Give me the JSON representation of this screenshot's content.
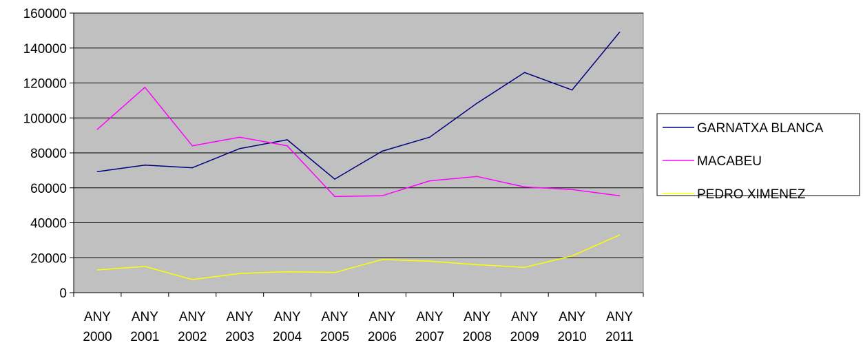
{
  "chart_data": {
    "type": "line",
    "categories": [
      [
        "ANY",
        "2000"
      ],
      [
        "ANY",
        "2001"
      ],
      [
        "ANY",
        "2002"
      ],
      [
        "ANY",
        "2003"
      ],
      [
        "ANY",
        "2004"
      ],
      [
        "ANY",
        "2005"
      ],
      [
        "ANY",
        "2006"
      ],
      [
        "ANY",
        "2007"
      ],
      [
        "ANY",
        "2008"
      ],
      [
        "ANY",
        "2009"
      ],
      [
        "ANY",
        "2010"
      ],
      [
        "ANY",
        "2011"
      ]
    ],
    "series": [
      {
        "name": "GARNATXA BLANCA",
        "color": "#000080",
        "values": [
          69300,
          73000,
          71500,
          82500,
          87500,
          65000,
          81000,
          89000,
          108500,
          126000,
          116000,
          149000
        ]
      },
      {
        "name": "MACABEU",
        "color": "#ff00ff",
        "values": [
          93500,
          117500,
          84000,
          89000,
          84000,
          55000,
          55500,
          64000,
          66500,
          60500,
          59000,
          55500
        ]
      },
      {
        "name": "PEDRO XIMENEZ",
        "color": "#ffff00",
        "values": [
          13000,
          15000,
          7500,
          11000,
          12000,
          11500,
          19000,
          18000,
          16000,
          14500,
          21000,
          33000
        ]
      }
    ],
    "y_ticks": [
      "0",
      "20000",
      "40000",
      "60000",
      "80000",
      "100000",
      "120000",
      "140000",
      "160000"
    ],
    "ylim": [
      0,
      160000
    ],
    "grid": true,
    "plot_background": "#c0c0c0",
    "gridline_color": "#000000",
    "legend": "right"
  }
}
